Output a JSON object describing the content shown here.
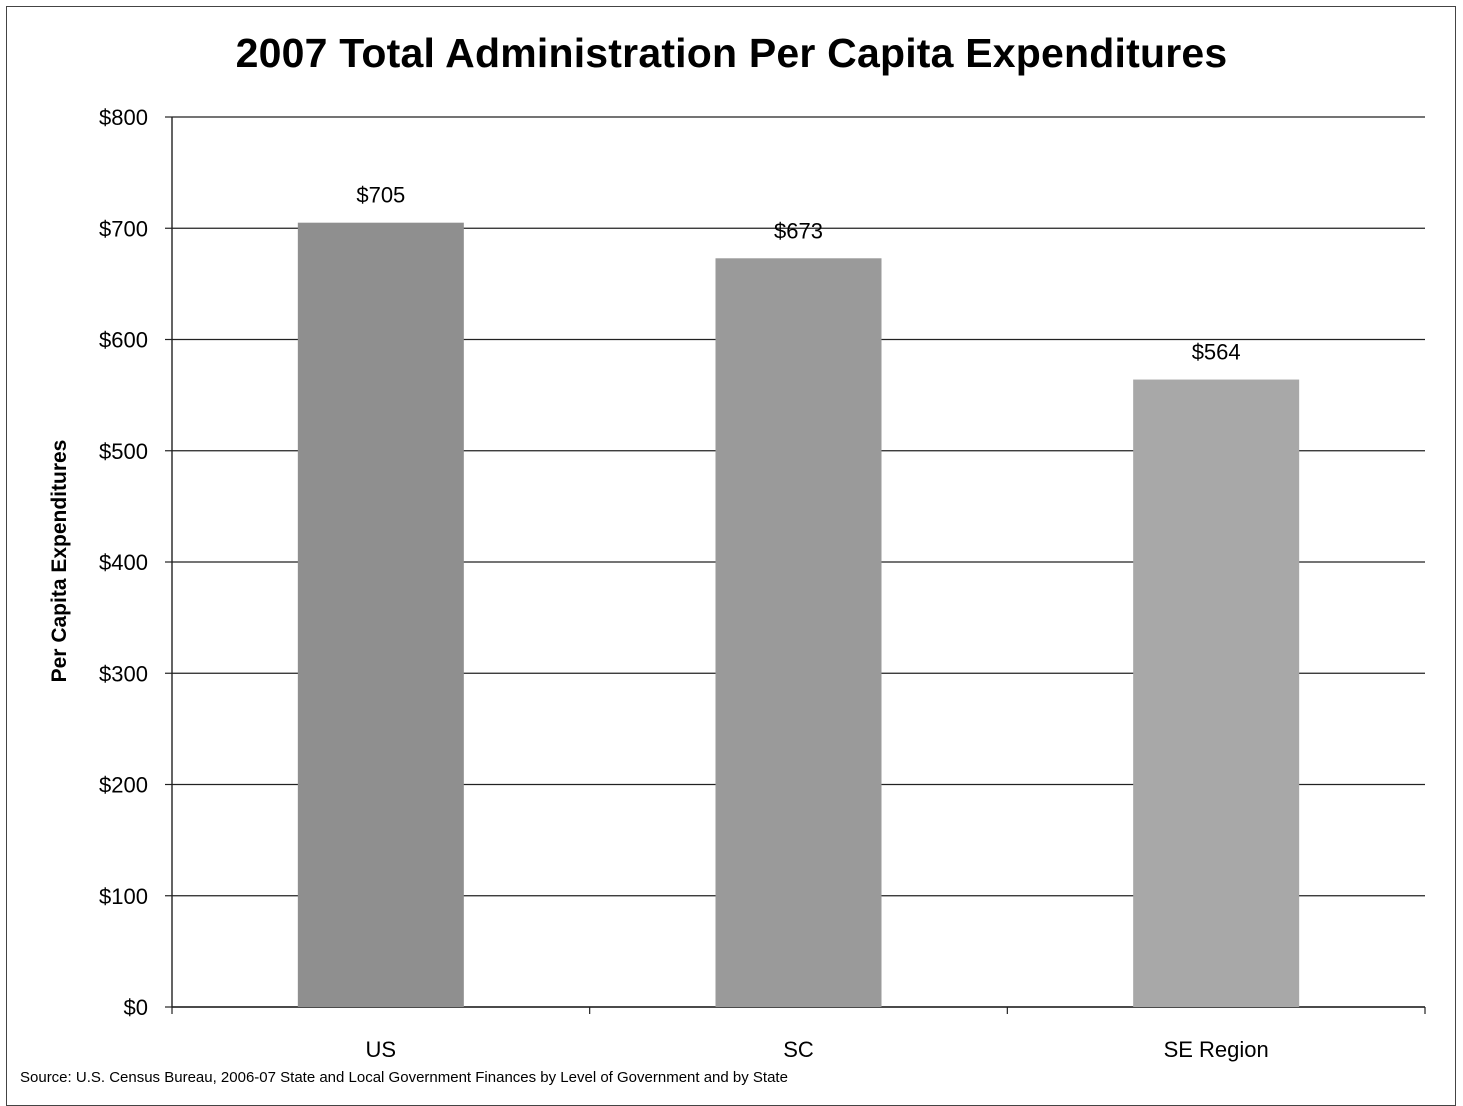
{
  "chart_data": {
    "type": "bar",
    "title": "2007 Total Administration Per Capita Expenditures",
    "xlabel": "",
    "ylabel": "Per Capita Expenditures",
    "categories": [
      "US",
      "SC",
      "SE Region"
    ],
    "values": [
      705,
      673,
      564
    ],
    "data_labels": [
      "$705",
      "$673",
      "$564"
    ],
    "ylim": [
      0,
      800
    ],
    "yticks": [
      0,
      100,
      200,
      300,
      400,
      500,
      600,
      700,
      800
    ],
    "ytick_labels": [
      "$0",
      "$100",
      "$200",
      "$300",
      "$400",
      "$500",
      "$600",
      "$700",
      "$800"
    ],
    "grid": true,
    "legend": "none",
    "bar_colors": [
      "#8f8f8f",
      "#9a9a9a",
      "#a8a8a8"
    ]
  },
  "source_note": "Source:  U.S. Census Bureau, 2006-07 State and Local Government Finances by Level of Government and by State"
}
